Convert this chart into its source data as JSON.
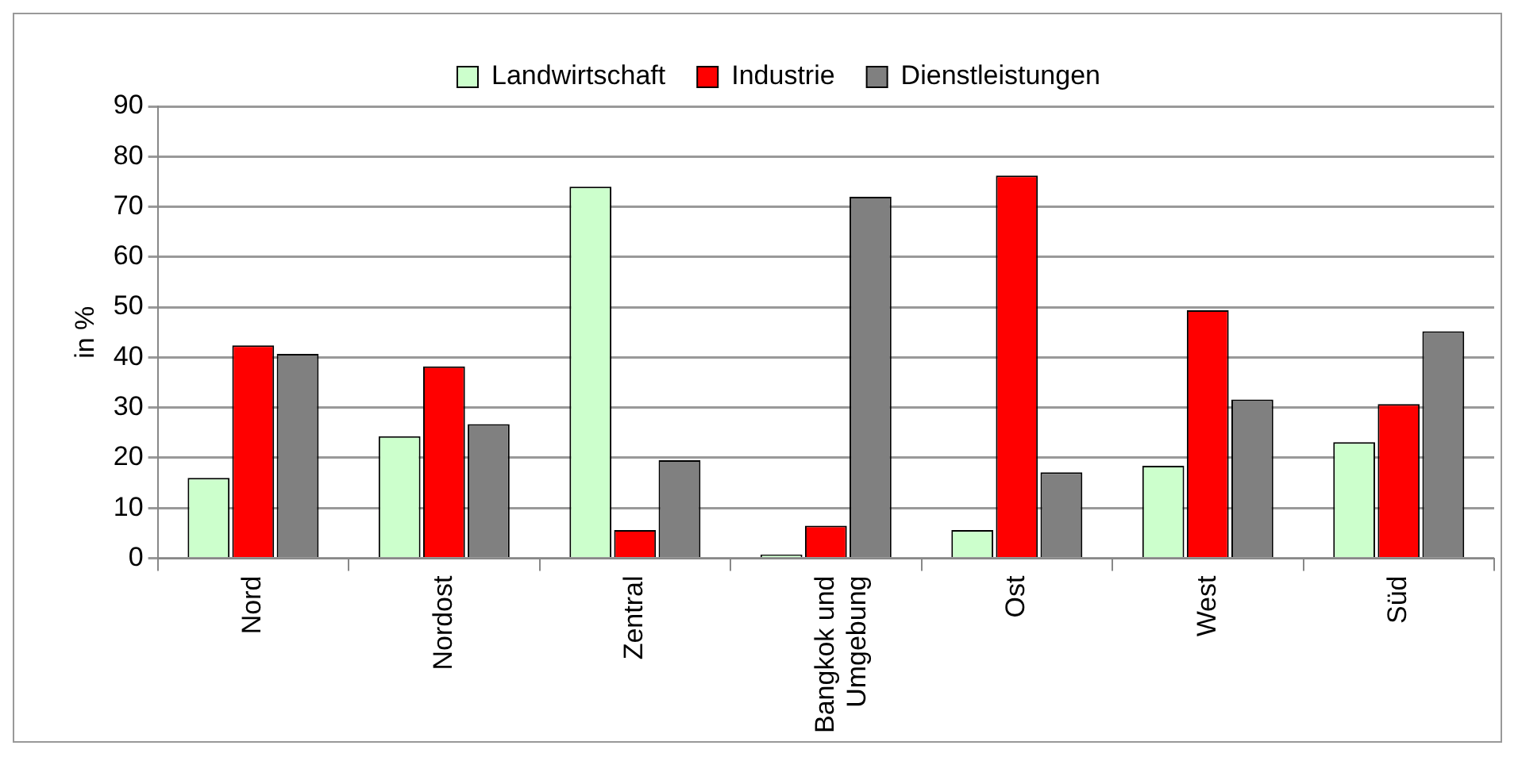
{
  "chart_data": {
    "type": "bar",
    "ylabel": "in %",
    "categories": [
      "Nord",
      "Nordost",
      "Zentral",
      "Bangkok und Umgebung",
      "Ost",
      "West",
      "Süd"
    ],
    "series": [
      {
        "name": "Landwirtschaft",
        "color": "#ccffcc",
        "values": [
          16,
          24.3,
          74,
          0.7,
          5.6,
          18.4,
          23.1
        ]
      },
      {
        "name": "Industrie",
        "color": "#ff0000",
        "values": [
          42.4,
          38.2,
          5.6,
          6.5,
          76.2,
          49.4,
          30.7
        ]
      },
      {
        "name": "Dienstleistungen",
        "color": "#808080",
        "values": [
          40.7,
          26.7,
          19.5,
          72,
          17.1,
          31.6,
          45.2
        ]
      }
    ],
    "ylim": [
      0,
      90
    ],
    "yticks": [
      0,
      10,
      20,
      30,
      40,
      50,
      60,
      70,
      80,
      90
    ],
    "grid": "y",
    "legend": "top"
  }
}
